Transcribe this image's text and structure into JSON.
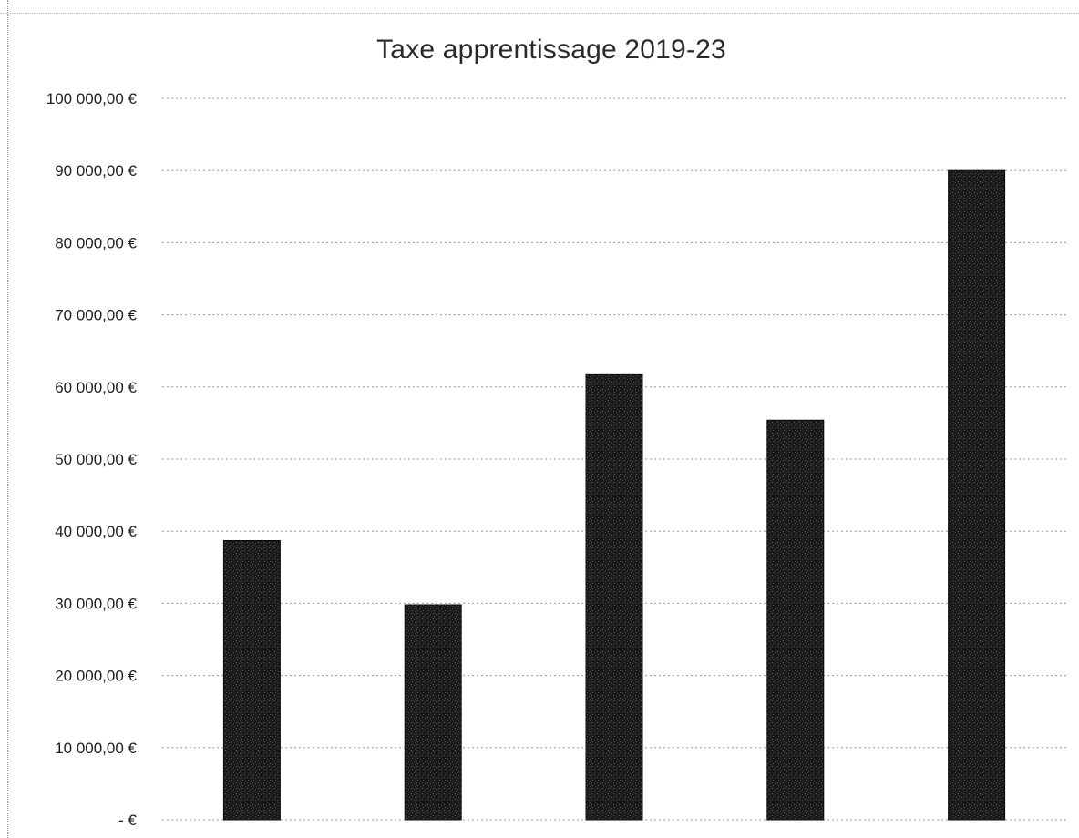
{
  "chart_data": {
    "type": "bar",
    "title": "Taxe apprentissage 2019-23",
    "xlabel": "",
    "ylabel": "",
    "categories": [
      "",
      "",
      "",
      "",
      ""
    ],
    "values": [
      38700,
      29800,
      61700,
      55400,
      90000
    ],
    "ylim": [
      0,
      100000
    ],
    "y_ticks": [
      0,
      10000,
      20000,
      30000,
      40000,
      50000,
      60000,
      70000,
      80000,
      90000,
      100000
    ],
    "y_tick_labels": [
      "-   €",
      "10 000,00 €",
      "20 000,00 €",
      "30 000,00 €",
      "40 000,00 €",
      "50 000,00 €",
      "60 000,00 €",
      "70 000,00 €",
      "80 000,00 €",
      "90 000,00 €",
      "100 000,00 €"
    ],
    "grid": true,
    "legend": "none",
    "colors": {
      "bar": "#1a1a1a",
      "grid": "#9c9c9c",
      "text": "#1e1e1e"
    }
  }
}
